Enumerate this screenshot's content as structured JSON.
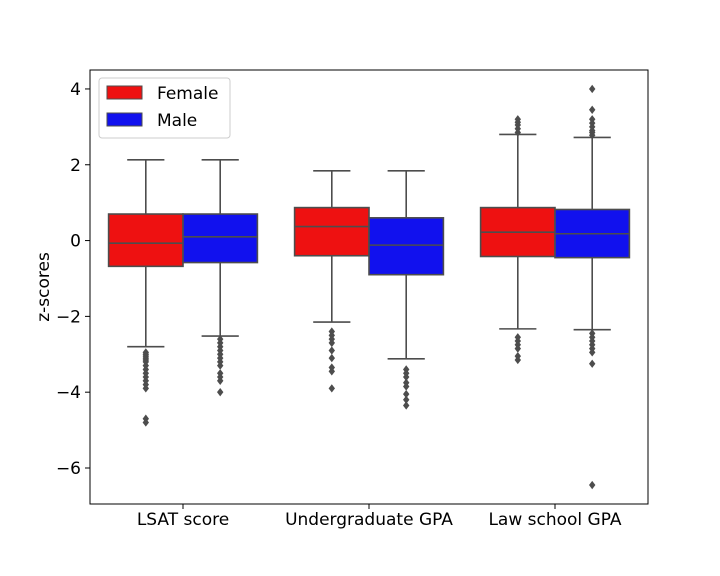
{
  "chart_data": {
    "type": "box",
    "title": "",
    "xlabel": "",
    "ylabel": "z-scores",
    "ylim": [
      -6.95,
      4.5
    ],
    "yticks": [
      4,
      2,
      0,
      -2,
      -4,
      -6
    ],
    "ytick_labels": [
      "4",
      "2",
      "0",
      "−2",
      "−4",
      "−6"
    ],
    "categories": [
      "LSAT score",
      "Undergraduate GPA",
      "Law school GPA"
    ],
    "grid": false,
    "legend": {
      "position": "upper-left"
    },
    "series": [
      {
        "name": "Female",
        "color": "#ee1111",
        "boxes": [
          {
            "whisker_low": -2.8,
            "q1": -0.68,
            "median": -0.07,
            "q3": 0.7,
            "whisker_high": 2.13,
            "outliers": [
              -2.95,
              -3.0,
              -3.05,
              -3.1,
              -3.15,
              -3.2,
              -3.3,
              -3.4,
              -3.5,
              -3.6,
              -3.7,
              -3.8,
              -3.9,
              -4.7,
              -4.8
            ]
          },
          {
            "whisker_low": -2.15,
            "q1": -0.4,
            "median": 0.37,
            "q3": 0.87,
            "whisker_high": 1.84,
            "outliers": [
              -2.4,
              -2.5,
              -2.6,
              -2.7,
              -2.9,
              -3.1,
              -3.35,
              -3.45,
              -3.9
            ]
          },
          {
            "whisker_low": -2.33,
            "q1": -0.42,
            "median": 0.22,
            "q3": 0.87,
            "whisker_high": 2.8,
            "outliers": [
              2.85,
              2.95,
              3.05,
              3.12,
              3.2,
              -2.55,
              -2.65,
              -2.75,
              -2.85,
              -3.05,
              -3.15
            ]
          }
        ]
      },
      {
        "name": "Male",
        "color": "#1111ee",
        "boxes": [
          {
            "whisker_low": -2.52,
            "q1": -0.58,
            "median": 0.1,
            "q3": 0.7,
            "whisker_high": 2.13,
            "outliers": [
              -2.6,
              -2.7,
              -2.8,
              -2.9,
              -3.0,
              -3.1,
              -3.2,
              -3.3,
              -3.5,
              -3.6,
              -3.7,
              -4.0
            ]
          },
          {
            "whisker_low": -3.12,
            "q1": -0.9,
            "median": -0.12,
            "q3": 0.6,
            "whisker_high": 1.84,
            "outliers": [
              -3.4,
              -3.5,
              -3.6,
              -3.75,
              -3.85,
              -4.05,
              -4.2,
              -4.35
            ]
          },
          {
            "whisker_low": -2.35,
            "q1": -0.45,
            "median": 0.18,
            "q3": 0.82,
            "whisker_high": 2.72,
            "outliers": [
              2.78,
              2.85,
              2.9,
              3.0,
              3.1,
              3.2,
              3.45,
              4.0,
              -2.45,
              -2.55,
              -2.65,
              -2.75,
              -2.85,
              -2.95,
              -3.25,
              -6.45
            ]
          }
        ]
      }
    ]
  }
}
